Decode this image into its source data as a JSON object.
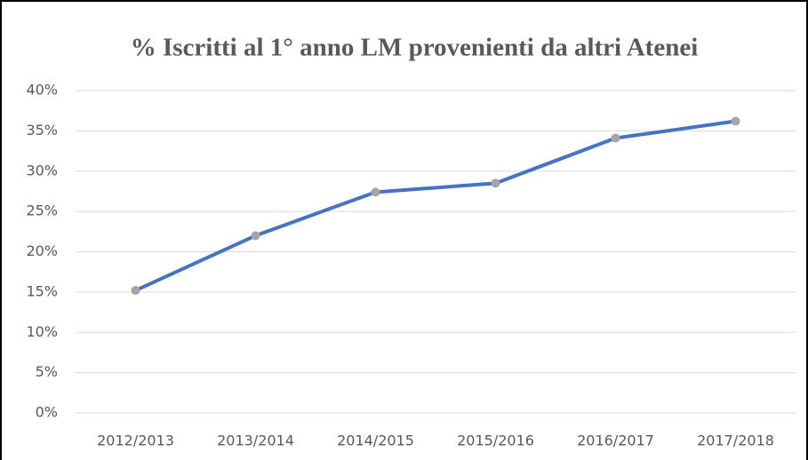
{
  "chart_data": {
    "type": "line",
    "title": "% Iscritti al 1° anno LM provenienti  da altri Atenei",
    "categories": [
      "2012/2013",
      "2013/2014",
      "2014/2015",
      "2015/2016",
      "2016/2017",
      "2017/2018"
    ],
    "series": [
      {
        "name": "% Iscritti al 1° anno LM provenienti da altri Atenei",
        "color": "#4472c4",
        "marker_color": "#a5a5a5",
        "values": [
          15.2,
          22,
          27.4,
          28.5,
          34.1,
          36.2
        ]
      }
    ],
    "ylim": [
      0,
      40
    ],
    "yticks": [
      {
        "value": 0,
        "label": "0%"
      },
      {
        "value": 5,
        "label": "5%"
      },
      {
        "value": 10,
        "label": "10%"
      },
      {
        "value": 15,
        "label": "15%"
      },
      {
        "value": 20,
        "label": "20%"
      },
      {
        "value": 25,
        "label": "25%"
      },
      {
        "value": 30,
        "label": "30%"
      },
      {
        "value": 35,
        "label": "35%"
      },
      {
        "value": 40,
        "label": "40%"
      }
    ],
    "grid": true,
    "legend": false
  }
}
